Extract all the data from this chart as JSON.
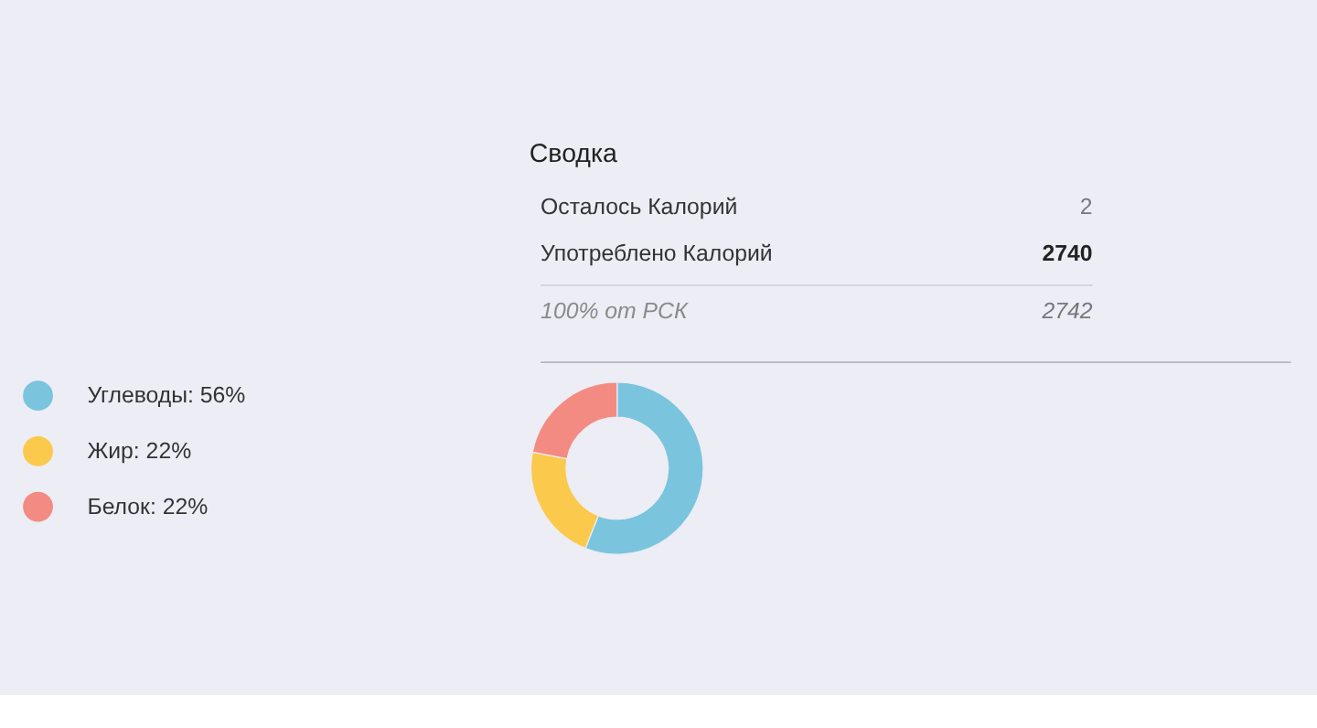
{
  "chart_data": [
    {
      "type": "other",
      "title": "Сводка",
      "annotations": [
        "Осталось Калорий",
        "2",
        "Употреблено Калорий",
        "2740",
        "100% от РСК",
        "2742"
      ]
    },
    {
      "type": "donut",
      "categories": [
        "Углеводы",
        "Жир",
        "Белок"
      ],
      "values": [
        56,
        22,
        22
      ],
      "colors": [
        "#7ac4de",
        "#fbc94b",
        "#f38b83"
      ],
      "value_labels": [
        "56%",
        "22%",
        "22%"
      ],
      "legend": "left"
    }
  ]
}
